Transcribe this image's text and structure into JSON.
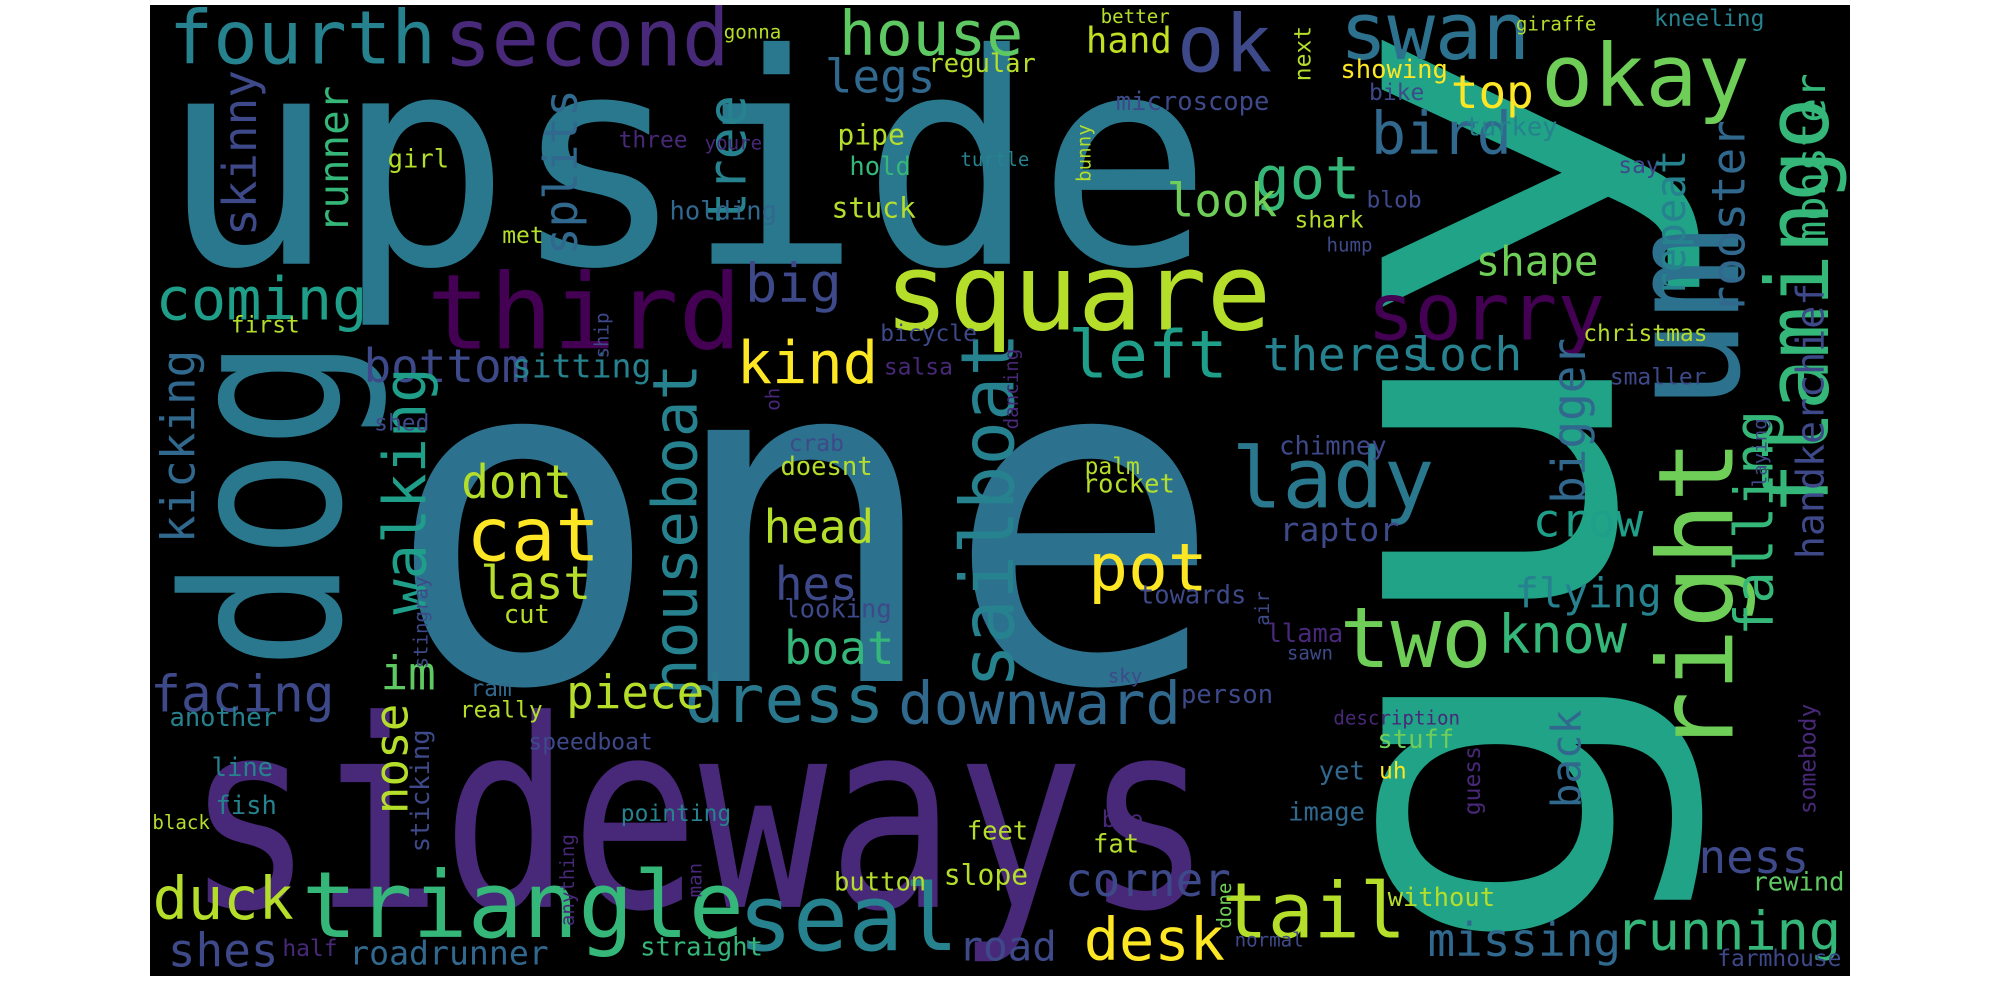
{
  "words": [
    {
      "text": "one",
      "color": "#2c728e"
    },
    {
      "text": "upside",
      "color": "#2a788e"
    },
    {
      "text": "sideways",
      "color": "#482878"
    },
    {
      "text": "guy",
      "color": "#20a386"
    },
    {
      "text": "dog",
      "color": "#2a788e"
    },
    {
      "text": "third",
      "color": "#440154"
    },
    {
      "text": "square",
      "color": "#b5de2b"
    },
    {
      "text": "okay",
      "color": "#6ece58"
    },
    {
      "text": "fourth",
      "color": "#26828e"
    },
    {
      "text": "second",
      "color": "#482878"
    },
    {
      "text": "house",
      "color": "#5ec962"
    },
    {
      "text": "ok",
      "color": "#3e4989"
    },
    {
      "text": "swan",
      "color": "#2c728e"
    },
    {
      "text": "um",
      "color": "#2c728e"
    },
    {
      "text": "right",
      "color": "#6ece58"
    },
    {
      "text": "flamingo",
      "color": "#35b779"
    },
    {
      "text": "sorry",
      "color": "#440154"
    },
    {
      "text": "lady",
      "color": "#2a788e"
    },
    {
      "text": "two",
      "color": "#6ece58"
    },
    {
      "text": "tail",
      "color": "#b5de2b"
    },
    {
      "text": "triangle",
      "color": "#35b779"
    },
    {
      "text": "seal",
      "color": "#26828e"
    },
    {
      "text": "dress",
      "color": "#2a788e"
    },
    {
      "text": "downward",
      "color": "#31688e"
    },
    {
      "text": "sailboat",
      "color": "#26828e"
    },
    {
      "text": "houseboat",
      "color": "#26828e"
    },
    {
      "text": "cat",
      "color": "#fde725"
    },
    {
      "text": "pot",
      "color": "#fde725"
    },
    {
      "text": "kind",
      "color": "#fde725"
    },
    {
      "text": "left",
      "color": "#1f9e89"
    },
    {
      "text": "big",
      "color": "#3e4989"
    },
    {
      "text": "tree",
      "color": "#26828e"
    },
    {
      "text": "legs",
      "color": "#31688e"
    },
    {
      "text": "hand",
      "color": "#c2df23"
    },
    {
      "text": "splits",
      "color": "#31688e"
    },
    {
      "text": "skinny",
      "color": "#3e4989"
    },
    {
      "text": "runner",
      "color": "#35b779"
    },
    {
      "text": "got",
      "color": "#35b779"
    },
    {
      "text": "look",
      "color": "#6ece58"
    },
    {
      "text": "bird",
      "color": "#31688e"
    },
    {
      "text": "top",
      "color": "#fde725"
    },
    {
      "text": "coming",
      "color": "#1f9e89"
    },
    {
      "text": "bottom",
      "color": "#3e4989"
    },
    {
      "text": "sitting",
      "color": "#26828e"
    },
    {
      "text": "kicking",
      "color": "#31688e"
    },
    {
      "text": "walking",
      "color": "#1f9e89"
    },
    {
      "text": "dont",
      "color": "#b5de2b"
    },
    {
      "text": "last",
      "color": "#b5de2b"
    },
    {
      "text": "cut",
      "color": "#b5de2b"
    },
    {
      "text": "head",
      "color": "#b5de2b"
    },
    {
      "text": "hes",
      "color": "#3e4989"
    },
    {
      "text": "looking",
      "color": "#3e4989"
    },
    {
      "text": "boat",
      "color": "#35b779"
    },
    {
      "text": "im",
      "color": "#5ec962"
    },
    {
      "text": "facing",
      "color": "#3e4989"
    },
    {
      "text": "piece",
      "color": "#b5de2b"
    },
    {
      "text": "ram",
      "color": "#31688e"
    },
    {
      "text": "really",
      "color": "#b5de2b"
    },
    {
      "text": "another",
      "color": "#26828e"
    },
    {
      "text": "line",
      "color": "#26828e"
    },
    {
      "text": "fish",
      "color": "#26828e"
    },
    {
      "text": "black",
      "color": "#b5de2b"
    },
    {
      "text": "nose",
      "color": "#b5de2b"
    },
    {
      "text": "sticking",
      "color": "#3e4989"
    },
    {
      "text": "stingray",
      "color": "#3e4989"
    },
    {
      "text": "speedboat",
      "color": "#3e4989"
    },
    {
      "text": "pointing",
      "color": "#26828e"
    },
    {
      "text": "anything",
      "color": "#482878"
    },
    {
      "text": "man",
      "color": "#482878"
    },
    {
      "text": "duck",
      "color": "#b5de2b"
    },
    {
      "text": "shes",
      "color": "#3e4989"
    },
    {
      "text": "half",
      "color": "#482878"
    },
    {
      "text": "roadrunner",
      "color": "#31688e"
    },
    {
      "text": "straight",
      "color": "#35b779"
    },
    {
      "text": "button",
      "color": "#b5de2b"
    },
    {
      "text": "slope",
      "color": "#b5de2b"
    },
    {
      "text": "feet",
      "color": "#b5de2b"
    },
    {
      "text": "road",
      "color": "#3e4989"
    },
    {
      "text": "corner",
      "color": "#3e4989"
    },
    {
      "text": "desk",
      "color": "#fde725"
    },
    {
      "text": "fat",
      "color": "#b5de2b"
    },
    {
      "text": "bee",
      "color": "#482878"
    },
    {
      "text": "done",
      "color": "#6ece58"
    },
    {
      "text": "normal",
      "color": "#3e4989"
    },
    {
      "text": "without",
      "color": "#b5de2b"
    },
    {
      "text": "missing",
      "color": "#31688e"
    },
    {
      "text": "running",
      "color": "#35b779"
    },
    {
      "text": "ness",
      "color": "#3e4989"
    },
    {
      "text": "rewind",
      "color": "#5ec962"
    },
    {
      "text": "farmhouse",
      "color": "#3e4989"
    },
    {
      "text": "image",
      "color": "#31688e"
    },
    {
      "text": "yet",
      "color": "#31688e"
    },
    {
      "text": "uh",
      "color": "#fde725"
    },
    {
      "text": "guess",
      "color": "#482878"
    },
    {
      "text": "stuff",
      "color": "#6ece58"
    },
    {
      "text": "description",
      "color": "#482878"
    },
    {
      "text": "back",
      "color": "#31688e"
    },
    {
      "text": "somebody",
      "color": "#482878"
    },
    {
      "text": "person",
      "color": "#3e4989"
    },
    {
      "text": "sky",
      "color": "#3e4989"
    },
    {
      "text": "towards",
      "color": "#3e4989"
    },
    {
      "text": "air",
      "color": "#3e4989"
    },
    {
      "text": "llama",
      "color": "#482878"
    },
    {
      "text": "sawn",
      "color": "#3e4989"
    },
    {
      "text": "know",
      "color": "#35b779"
    },
    {
      "text": "flying",
      "color": "#26828e"
    },
    {
      "text": "crow",
      "color": "#1f9e89"
    },
    {
      "text": "raptor",
      "color": "#3e4989"
    },
    {
      "text": "chimney",
      "color": "#3e4989"
    },
    {
      "text": "palm",
      "color": "#b5de2b"
    },
    {
      "text": "rocket",
      "color": "#b5de2b"
    },
    {
      "text": "crab",
      "color": "#3e4989"
    },
    {
      "text": "doesnt",
      "color": "#b5de2b"
    },
    {
      "text": "stuck",
      "color": "#b5de2b"
    },
    {
      "text": "pipe",
      "color": "#b5de2b"
    },
    {
      "text": "hold",
      "color": "#35b779"
    },
    {
      "text": "holding",
      "color": "#31688e"
    },
    {
      "text": "three",
      "color": "#482878"
    },
    {
      "text": "youre",
      "color": "#482878"
    },
    {
      "text": "girl",
      "color": "#b5de2b"
    },
    {
      "text": "met",
      "color": "#b5de2b"
    },
    {
      "text": "first",
      "color": "#b5de2b"
    },
    {
      "text": "shed",
      "color": "#3e4989"
    },
    {
      "text": "ship",
      "color": "#3e4989"
    },
    {
      "text": "bicycle",
      "color": "#3e4989"
    },
    {
      "text": "salsa",
      "color": "#482878"
    },
    {
      "text": "dancing",
      "color": "#482878"
    },
    {
      "text": "oh",
      "color": "#482878"
    },
    {
      "text": "microscope",
      "color": "#3e4989"
    },
    {
      "text": "regular",
      "color": "#b5de2b"
    },
    {
      "text": "better",
      "color": "#b5de2b"
    },
    {
      "text": "next",
      "color": "#b5de2b"
    },
    {
      "text": "gonna",
      "color": "#b5de2b"
    },
    {
      "text": "turtle",
      "color": "#26828e"
    },
    {
      "text": "bunny",
      "color": "#b5de2b"
    },
    {
      "text": "showing",
      "color": "#fde725"
    },
    {
      "text": "bike",
      "color": "#3e4989"
    },
    {
      "text": "giraffe",
      "color": "#b5de2b"
    },
    {
      "text": "kneeling",
      "color": "#26828e"
    },
    {
      "text": "turkey",
      "color": "#26828e"
    },
    {
      "text": "say",
      "color": "#3e4989"
    },
    {
      "text": "blob",
      "color": "#3e4989"
    },
    {
      "text": "shark",
      "color": "#b5de2b"
    },
    {
      "text": "hump",
      "color": "#3e4989"
    },
    {
      "text": "shape",
      "color": "#6ece58"
    },
    {
      "text": "repeat",
      "color": "#26828e"
    },
    {
      "text": "rooster",
      "color": "#31688e"
    },
    {
      "text": "monster",
      "color": "#35b779"
    },
    {
      "text": "handkerchief",
      "color": "#3e4989"
    },
    {
      "text": "bigger",
      "color": "#31688e"
    },
    {
      "text": "falling",
      "color": "#35b779"
    },
    {
      "text": "theres",
      "color": "#26828e"
    },
    {
      "text": "loch",
      "color": "#26828e"
    },
    {
      "text": "christmas",
      "color": "#b5de2b"
    },
    {
      "text": "smaller",
      "color": "#3e4989"
    },
    {
      "text": "laying",
      "color": "#3e4989"
    }
  ]
}
